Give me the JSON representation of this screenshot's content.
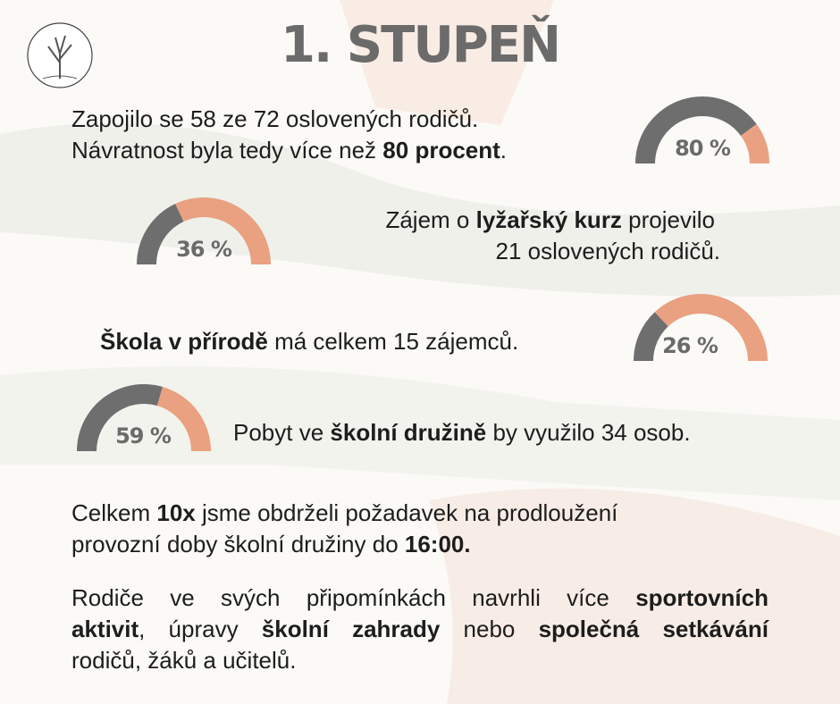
{
  "title": "1. STUPEŇ",
  "blocks": [
    {
      "lines": [
        [
          {
            "text": "Zapojilo se 58 ze 72 oslovených rodičů."
          }
        ],
        [
          {
            "text": "Návratnost byla tedy více než "
          },
          {
            "text": "80 procent",
            "bold": true
          },
          {
            "text": "."
          }
        ]
      ],
      "gauge": {
        "value": 80,
        "label": "80 %"
      }
    },
    {
      "lines": [
        [
          {
            "text": "Zájem o "
          },
          {
            "text": "lyžařský kurz",
            "bold": true
          },
          {
            "text": " projevilo"
          }
        ],
        [
          {
            "text": "21 oslovených rodičů."
          }
        ]
      ],
      "gauge": {
        "value": 36,
        "label": "36 %"
      }
    },
    {
      "lines": [
        [
          {
            "text": "Škola v přírodě",
            "bold": true
          },
          {
            "text": " má celkem 15 zájemců."
          }
        ]
      ],
      "gauge": {
        "value": 26,
        "label": "26 %"
      }
    },
    {
      "lines": [
        [
          {
            "text": "Pobyt ve "
          },
          {
            "text": "školní družině",
            "bold": true
          },
          {
            "text": " by využilo 34 osob."
          }
        ]
      ],
      "gauge": {
        "value": 59,
        "label": "59 %"
      }
    }
  ],
  "paragraphs": [
    {
      "lines": [
        [
          {
            "text": "Celkem "
          },
          {
            "text": "10x",
            "bold": true
          },
          {
            "text": " jsme obdrželi požadavek na prodloužení"
          }
        ],
        [
          {
            "text": "provozní doby školní družiny do "
          },
          {
            "text": "16:00.",
            "bold": true
          }
        ]
      ]
    },
    {
      "lines": [
        [
          {
            "text": "Rodiče ve svých připomínkách navrhli více "
          },
          {
            "text": "sportovních",
            "bold": true
          }
        ],
        [
          {
            "text": "aktivit",
            "bold": true
          },
          {
            "text": ", úpravy "
          },
          {
            "text": "školní zahrady",
            "bold": true
          },
          {
            "text": " nebo "
          },
          {
            "text": "společná setkávání",
            "bold": true
          }
        ],
        [
          {
            "text": "rodičů, žáků a učitelů."
          }
        ]
      ]
    }
  ]
}
